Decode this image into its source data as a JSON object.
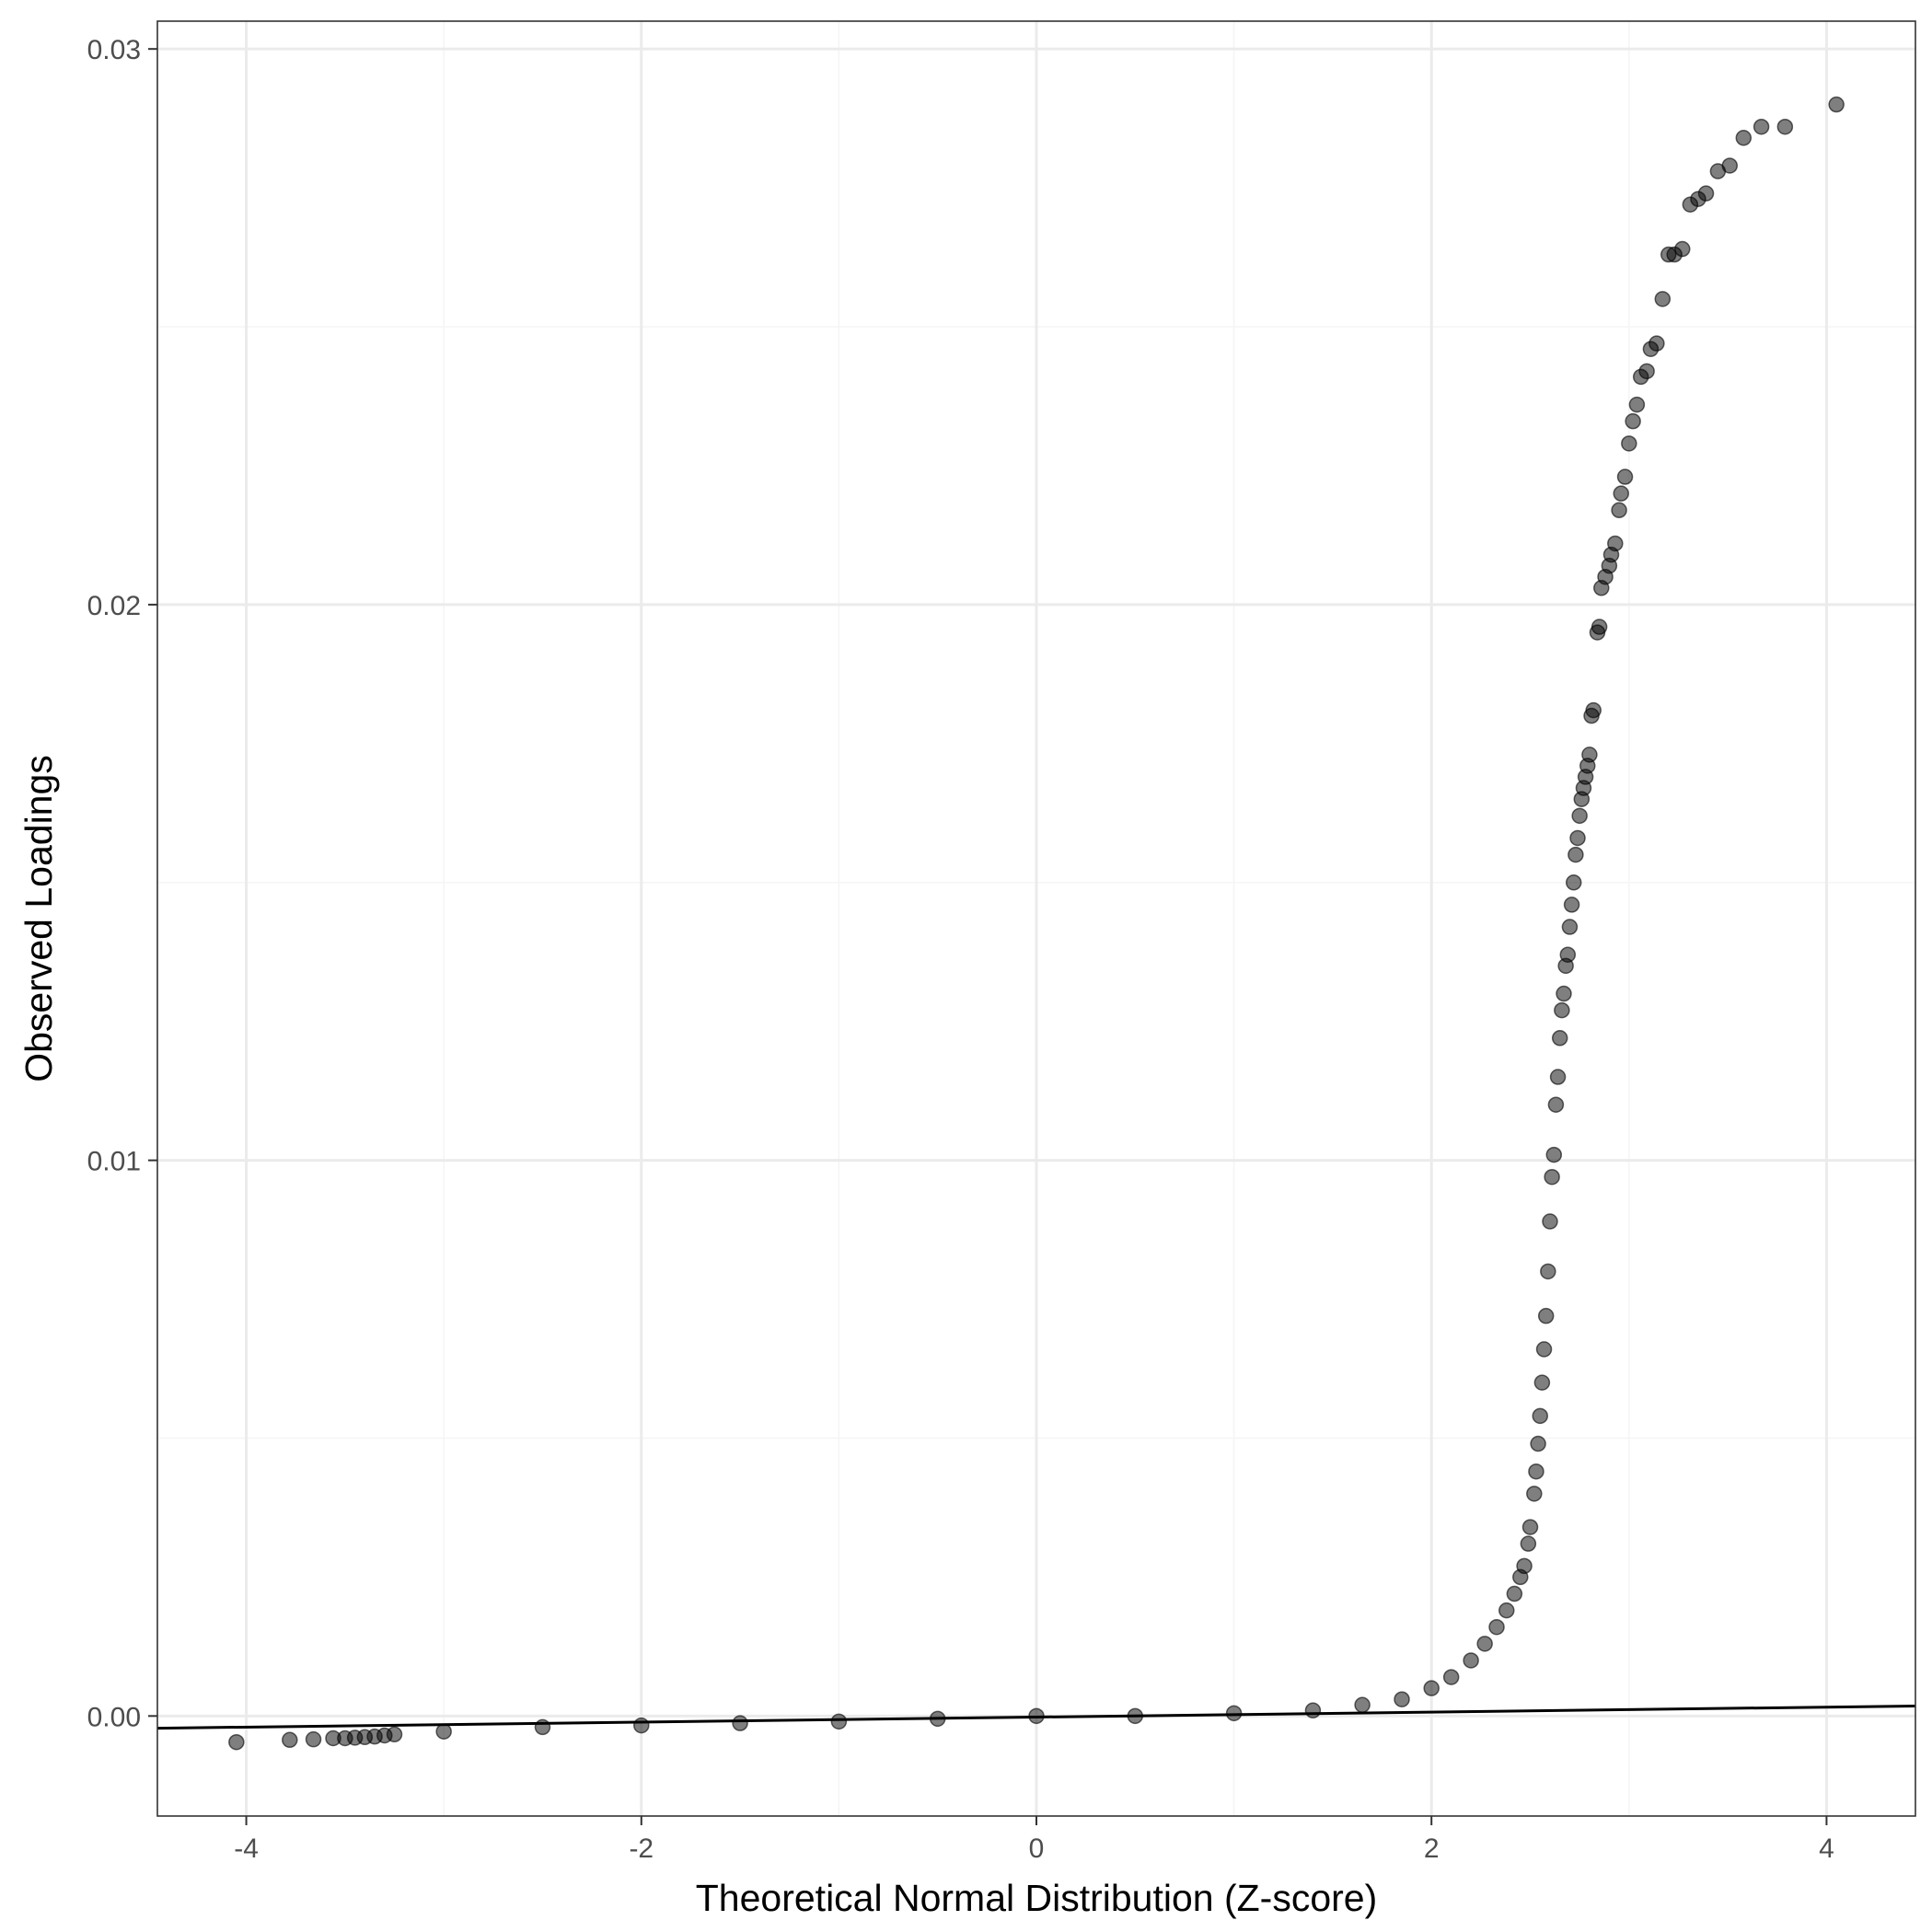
{
  "chart_data": {
    "type": "scatter",
    "title": "",
    "xlabel": "Theoretical Normal Distribution (Z-score)",
    "ylabel": "Observed Loadings",
    "xlim": [
      -4.45,
      4.45
    ],
    "ylim": [
      -0.0018,
      0.0305
    ],
    "x_ticks": [
      -4,
      -2,
      0,
      2,
      4
    ],
    "x_tick_labels": [
      "-4",
      "-2",
      "0",
      "2",
      "4"
    ],
    "y_ticks": [
      0.0,
      0.01,
      0.02,
      0.03
    ],
    "y_tick_labels": [
      "0.00",
      "0.01",
      "0.02",
      "0.03"
    ],
    "grid": true,
    "legend": "none",
    "colors": {
      "point": "#000000",
      "point_opacity": 0.5,
      "line": "#000000",
      "grid_major": "#ebebeb",
      "grid_minor": "#f5f5f5",
      "panel_border": "#333333"
    },
    "reference_line": {
      "x": [
        -4.45,
        4.45
      ],
      "y": [
        -0.00022,
        0.00018
      ]
    },
    "series": [
      {
        "points": [
          [
            4.05,
            0.029
          ],
          [
            3.79,
            0.0286
          ],
          [
            3.67,
            0.0286
          ],
          [
            3.58,
            0.0284
          ],
          [
            3.51,
            0.0279
          ],
          [
            3.45,
            0.0278
          ],
          [
            3.39,
            0.0274
          ],
          [
            3.35,
            0.0273
          ],
          [
            3.31,
            0.0272
          ],
          [
            3.27,
            0.0264
          ],
          [
            3.23,
            0.0263
          ],
          [
            3.2,
            0.0263
          ],
          [
            3.17,
            0.0255
          ],
          [
            3.14,
            0.0247
          ],
          [
            3.11,
            0.0246
          ],
          [
            3.09,
            0.0242
          ],
          [
            3.06,
            0.0241
          ],
          [
            3.04,
            0.0236
          ],
          [
            3.02,
            0.0233
          ],
          [
            3.0,
            0.0229
          ],
          [
            2.98,
            0.0223
          ],
          [
            2.96,
            0.022
          ],
          [
            2.95,
            0.0217
          ],
          [
            2.93,
            0.0211
          ],
          [
            2.91,
            0.0209
          ],
          [
            2.9,
            0.0207
          ],
          [
            2.88,
            0.0205
          ],
          [
            2.86,
            0.0203
          ],
          [
            2.85,
            0.0196
          ],
          [
            2.84,
            0.0195
          ],
          [
            2.82,
            0.0181
          ],
          [
            2.81,
            0.018
          ],
          [
            2.8,
            0.0173
          ],
          [
            2.79,
            0.0171
          ],
          [
            2.78,
            0.0169
          ],
          [
            2.77,
            0.0167
          ],
          [
            2.76,
            0.0165
          ],
          [
            2.75,
            0.0162
          ],
          [
            2.74,
            0.0158
          ],
          [
            2.73,
            0.0155
          ],
          [
            2.72,
            0.015
          ],
          [
            2.71,
            0.0146
          ],
          [
            2.7,
            0.0142
          ],
          [
            2.69,
            0.0137
          ],
          [
            2.68,
            0.0135
          ],
          [
            2.67,
            0.013
          ],
          [
            2.66,
            0.0127
          ],
          [
            2.65,
            0.0122
          ],
          [
            2.64,
            0.0115
          ],
          [
            2.63,
            0.011
          ],
          [
            2.62,
            0.0101
          ],
          [
            2.61,
            0.0097
          ],
          [
            2.6,
            0.0089
          ],
          [
            2.59,
            0.008
          ],
          [
            2.58,
            0.0072
          ],
          [
            2.57,
            0.0066
          ],
          [
            2.56,
            0.006
          ],
          [
            2.55,
            0.0054
          ],
          [
            2.54,
            0.0049
          ],
          [
            2.53,
            0.0044
          ],
          [
            2.52,
            0.004
          ],
          [
            2.5,
            0.0034
          ],
          [
            2.49,
            0.0031
          ],
          [
            2.47,
            0.0027
          ],
          [
            2.45,
            0.0025
          ],
          [
            2.42,
            0.0022
          ],
          [
            2.38,
            0.0019
          ],
          [
            2.33,
            0.0016
          ],
          [
            2.27,
            0.0013
          ],
          [
            2.2,
            0.001
          ],
          [
            2.1,
            0.0007
          ],
          [
            2.0,
            0.0005
          ],
          [
            1.85,
            0.0003
          ],
          [
            1.65,
            0.0002
          ],
          [
            1.4,
            0.0001
          ],
          [
            1.0,
            5e-05
          ],
          [
            0.5,
            0.0
          ],
          [
            0.0,
            0.0
          ],
          [
            -0.5,
            -5e-05
          ],
          [
            -1.0,
            -0.0001
          ],
          [
            -1.5,
            -0.00013
          ],
          [
            -2.0,
            -0.00017
          ],
          [
            -2.5,
            -0.0002
          ],
          [
            -3.0,
            -0.00028
          ],
          [
            -3.25,
            -0.00033
          ],
          [
            -3.3,
            -0.00035
          ],
          [
            -3.35,
            -0.00037
          ],
          [
            -3.4,
            -0.00038
          ],
          [
            -3.45,
            -0.00039
          ],
          [
            -3.5,
            -0.0004
          ],
          [
            -3.56,
            -0.0004
          ],
          [
            -3.66,
            -0.00042
          ],
          [
            -3.78,
            -0.00043
          ],
          [
            -4.05,
            -0.00047
          ]
        ]
      }
    ]
  }
}
